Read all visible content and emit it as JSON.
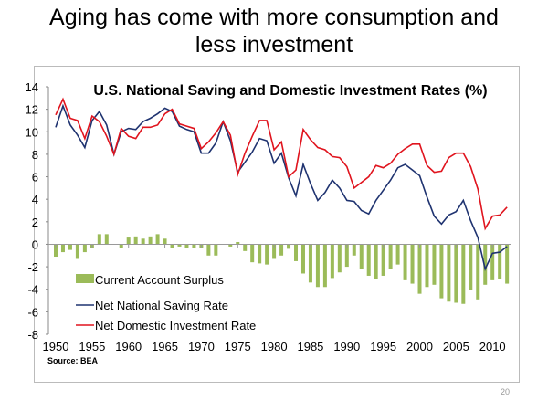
{
  "slide": {
    "title_line1": "Aging has come with more consumption and",
    "title_line2": "less investment",
    "page_number": "20"
  },
  "chart_data": {
    "type": "bar+line",
    "title": "U.S. National Saving and Domestic Investment Rates (%)",
    "source": "Source: BEA",
    "xlim": [
      1950,
      2012
    ],
    "ylim": [
      -8,
      14
    ],
    "yticks": [
      -8,
      -6,
      -4,
      -2,
      0,
      2,
      4,
      6,
      8,
      10,
      12,
      14
    ],
    "xticks": [
      1950,
      1955,
      1960,
      1965,
      1970,
      1975,
      1980,
      1985,
      1990,
      1995,
      2000,
      2005,
      2010
    ],
    "legend": "lower-left",
    "grid": false,
    "x_start": 1950,
    "series": [
      {
        "name": "Current Account Surplus",
        "type": "bar",
        "color": "#9bbb59",
        "values": [
          -1.1,
          -0.7,
          -0.5,
          -1.3,
          -0.7,
          -0.3,
          0.9,
          0.9,
          0.0,
          -0.3,
          0.6,
          0.7,
          0.5,
          0.7,
          0.9,
          0.5,
          -0.3,
          -0.2,
          -0.3,
          -0.3,
          -0.3,
          -1.0,
          -1.0,
          0.0,
          -0.2,
          0.2,
          -0.6,
          -1.6,
          -1.7,
          -1.8,
          -1.3,
          -1.0,
          -0.4,
          -1.5,
          -2.6,
          -3.4,
          -3.8,
          -3.8,
          -3.0,
          -2.5,
          -2.0,
          -1.0,
          -2.2,
          -2.8,
          -3.1,
          -2.8,
          -2.2,
          -1.8,
          -3.2,
          -3.5,
          -4.4,
          -3.8,
          -3.6,
          -4.8,
          -5.1,
          -5.2,
          -5.3,
          -4.1,
          -4.9,
          -3.6,
          -3.2,
          -3.1,
          -3.5
        ]
      },
      {
        "name": "Net National Saving Rate",
        "type": "line",
        "color": "#1f3370",
        "values": [
          10.4,
          12.3,
          10.6,
          9.7,
          8.6,
          11.0,
          11.8,
          10.6,
          8.0,
          10.0,
          10.3,
          10.2,
          10.9,
          11.2,
          11.6,
          12.1,
          11.8,
          10.5,
          10.2,
          10.0,
          8.1,
          8.1,
          9.0,
          10.9,
          9.2,
          6.4,
          7.3,
          8.2,
          9.4,
          9.2,
          7.2,
          8.1,
          5.9,
          4.3,
          7.1,
          5.4,
          3.9,
          4.6,
          5.7,
          5.0,
          3.9,
          3.8,
          3.0,
          2.7,
          3.9,
          4.8,
          5.7,
          6.8,
          7.1,
          6.6,
          6.1,
          4.2,
          2.5,
          1.8,
          2.6,
          2.9,
          3.9,
          2.1,
          0.6,
          -2.2,
          -0.8,
          -0.7,
          -0.2
        ]
      },
      {
        "name": "Net Domestic Investment Rate",
        "type": "line",
        "color": "#e0141e",
        "values": [
          11.5,
          12.9,
          11.2,
          11.0,
          9.4,
          11.4,
          10.9,
          9.6,
          8.0,
          10.3,
          9.6,
          9.4,
          10.4,
          10.4,
          10.6,
          11.6,
          12.0,
          10.7,
          10.5,
          10.3,
          8.5,
          9.1,
          9.9,
          10.9,
          9.7,
          6.2,
          8.1,
          9.6,
          11.0,
          11.0,
          8.4,
          9.1,
          6.0,
          6.6,
          10.2,
          9.3,
          8.6,
          8.4,
          7.8,
          7.7,
          6.9,
          5.0,
          5.5,
          6.0,
          7.0,
          6.8,
          7.2,
          8.0,
          8.5,
          8.9,
          8.9,
          7.0,
          6.4,
          6.5,
          7.7,
          8.1,
          8.1,
          6.9,
          4.9,
          1.4,
          2.5,
          2.6,
          3.3
        ]
      }
    ]
  }
}
